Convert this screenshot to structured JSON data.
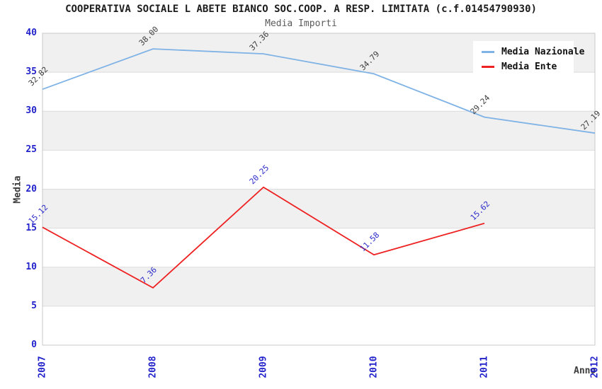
{
  "chart_data": {
    "type": "line",
    "title": "COOPERATIVA SOCIALE L ABETE BIANCO SOC.COOP. A RESP. LIMITATA (c.f.01454790930)",
    "subtitle": "Media Importi",
    "xlabel": "Anno",
    "ylabel": "Media",
    "categories": [
      "2007",
      "2008",
      "2009",
      "2010",
      "2011",
      "2012"
    ],
    "ylim": [
      0,
      40
    ],
    "ytick_step": 5,
    "yticks": [
      0,
      5,
      10,
      15,
      20,
      25,
      30,
      35,
      40
    ],
    "grid": true,
    "legend_position": "top-right",
    "series": [
      {
        "name": "Media Nazionale",
        "color": "#7FB2E5",
        "label_color": "#3c3c3c",
        "values": [
          32.82,
          38.0,
          37.36,
          34.79,
          29.24,
          27.19
        ],
        "labels": [
          "32.82",
          "38.00",
          "37.36",
          "34.79",
          "29.24",
          "27.19"
        ]
      },
      {
        "name": "Media Ente",
        "color": "#EE2222",
        "label_color": "#2A2ACA",
        "values": [
          15.12,
          7.36,
          20.25,
          11.58,
          15.62,
          null
        ],
        "labels": [
          "15.12",
          "7.36",
          "20.25",
          "11.58",
          "15.62",
          ""
        ]
      }
    ],
    "colors": {
      "axis_text": "#2323cb",
      "title": "#1c1c1c",
      "subtitle": "#5a5a5a",
      "grid_line": "#dcdcdc",
      "plot_border": "#c8c8c8",
      "band_white": "#ffffff",
      "band_gray": "#f0f0f0",
      "legend_bg": "#ffffff",
      "legend_text": "#111111"
    }
  }
}
